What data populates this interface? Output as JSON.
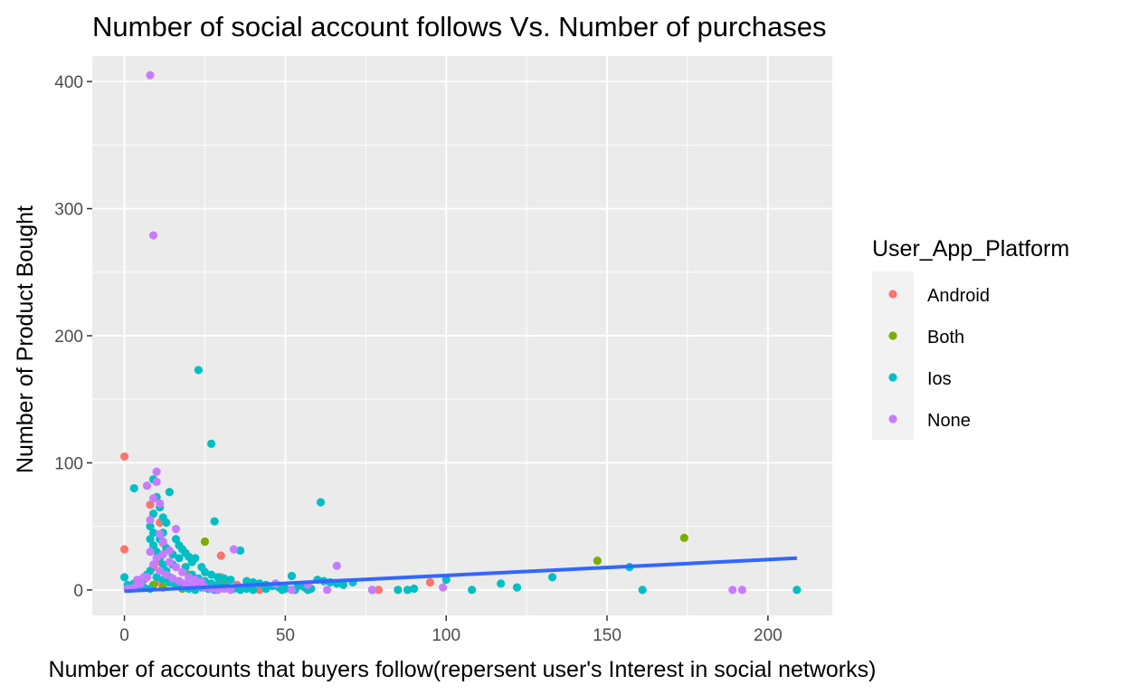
{
  "chart_data": {
    "type": "scatter",
    "title": "Number of social account follows Vs. Number of purchases",
    "xlabel": "Number of accounts that buyers follow(repersent user's Interest in social networks)",
    "ylabel": "Number of Product Bought",
    "xlim": [
      -10,
      220
    ],
    "ylim": [
      -20,
      420
    ],
    "x_ticks": [
      0,
      50,
      100,
      150,
      200
    ],
    "y_ticks": [
      0,
      100,
      200,
      300,
      400
    ],
    "grid": true,
    "legend": {
      "title": "User_App_Platform",
      "placement": "right",
      "entries": [
        "Android",
        "Both",
        "Ios",
        "None"
      ]
    },
    "series": [
      {
        "name": "Android",
        "color": "#F8766D",
        "points": [
          [
            0,
            105
          ],
          [
            0,
            32
          ],
          [
            8,
            67
          ],
          [
            11,
            53
          ],
          [
            12,
            37
          ],
          [
            10,
            22
          ],
          [
            13,
            12
          ],
          [
            15,
            8
          ],
          [
            16,
            3
          ],
          [
            30,
            27
          ],
          [
            30,
            10
          ],
          [
            35,
            4
          ],
          [
            37,
            2
          ],
          [
            42,
            0
          ],
          [
            18,
            5
          ],
          [
            20,
            2
          ],
          [
            9,
            18
          ],
          [
            11,
            6
          ],
          [
            79,
            0
          ],
          [
            95,
            6
          ],
          [
            4,
            2
          ],
          [
            6,
            8
          ],
          [
            26,
            3
          ]
        ]
      },
      {
        "name": "Both",
        "color": "#7CAE00",
        "points": [
          [
            25,
            38
          ],
          [
            20,
            12
          ],
          [
            15,
            6
          ],
          [
            9,
            4
          ],
          [
            12,
            2
          ],
          [
            147,
            23
          ],
          [
            174,
            41
          ],
          [
            31,
            6
          ],
          [
            18,
            1
          ]
        ]
      },
      {
        "name": "Ios",
        "color": "#00BFC4",
        "points": [
          [
            0,
            10
          ],
          [
            3,
            80
          ],
          [
            9,
            87
          ],
          [
            10,
            73
          ],
          [
            11,
            65
          ],
          [
            12,
            57
          ],
          [
            13,
            53
          ],
          [
            14,
            77
          ],
          [
            23,
            173
          ],
          [
            27,
            115
          ],
          [
            28,
            54
          ],
          [
            61,
            69
          ],
          [
            9,
            60
          ],
          [
            8,
            50
          ],
          [
            9,
            45
          ],
          [
            8,
            40
          ],
          [
            9,
            35
          ],
          [
            10,
            30
          ],
          [
            11,
            25
          ],
          [
            12,
            20
          ],
          [
            13,
            15
          ],
          [
            14,
            10
          ],
          [
            15,
            28
          ],
          [
            16,
            40
          ],
          [
            17,
            35
          ],
          [
            18,
            32
          ],
          [
            19,
            29
          ],
          [
            20,
            26
          ],
          [
            21,
            22
          ],
          [
            22,
            25
          ],
          [
            24,
            18
          ],
          [
            25,
            14
          ],
          [
            27,
            12
          ],
          [
            29,
            10
          ],
          [
            31,
            9
          ],
          [
            33,
            8
          ],
          [
            36,
            31
          ],
          [
            38,
            7
          ],
          [
            40,
            6
          ],
          [
            42,
            5
          ],
          [
            44,
            4
          ],
          [
            46,
            3
          ],
          [
            48,
            2
          ],
          [
            50,
            1
          ],
          [
            52,
            11
          ],
          [
            54,
            3
          ],
          [
            56,
            2
          ],
          [
            58,
            1
          ],
          [
            60,
            8
          ],
          [
            62,
            7
          ],
          [
            64,
            6
          ],
          [
            66,
            5
          ],
          [
            68,
            4
          ],
          [
            71,
            6
          ],
          [
            77,
            0
          ],
          [
            85,
            0
          ],
          [
            88,
            0
          ],
          [
            90,
            1
          ],
          [
            100,
            8
          ],
          [
            108,
            0
          ],
          [
            117,
            5
          ],
          [
            122,
            2
          ],
          [
            133,
            10
          ],
          [
            157,
            18
          ],
          [
            161,
            0
          ],
          [
            209,
            0
          ],
          [
            7,
            12
          ],
          [
            8,
            15
          ],
          [
            10,
            10
          ],
          [
            12,
            8
          ],
          [
            14,
            6
          ],
          [
            16,
            4
          ],
          [
            18,
            2
          ],
          [
            20,
            1
          ],
          [
            22,
            0
          ],
          [
            24,
            2
          ],
          [
            26,
            1
          ],
          [
            28,
            0
          ],
          [
            30,
            3
          ],
          [
            32,
            2
          ],
          [
            34,
            1
          ],
          [
            36,
            0
          ],
          [
            38,
            1
          ],
          [
            40,
            0
          ],
          [
            44,
            1
          ],
          [
            49,
            0
          ],
          [
            53,
            0
          ],
          [
            57,
            0
          ],
          [
            5,
            3
          ],
          [
            4,
            7
          ],
          [
            2,
            1
          ],
          [
            1,
            4
          ],
          [
            3,
            5
          ],
          [
            6,
            9
          ],
          [
            11,
            40
          ],
          [
            12,
            45
          ],
          [
            13,
            33
          ],
          [
            15,
            20
          ],
          [
            17,
            25
          ],
          [
            19,
            18
          ],
          [
            21,
            12
          ],
          [
            23,
            9
          ],
          [
            25,
            7
          ],
          [
            27,
            5
          ],
          [
            29,
            4
          ],
          [
            6,
            2
          ],
          [
            8,
            1
          ]
        ]
      },
      {
        "name": "None",
        "color": "#C77CFF",
        "points": [
          [
            8,
            405
          ],
          [
            9,
            279
          ],
          [
            10,
            93
          ],
          [
            7,
            82
          ],
          [
            10,
            85
          ],
          [
            9,
            72
          ],
          [
            11,
            68
          ],
          [
            8,
            55
          ],
          [
            11,
            44
          ],
          [
            12,
            38
          ],
          [
            14,
            31
          ],
          [
            16,
            48
          ],
          [
            34,
            32
          ],
          [
            66,
            19
          ],
          [
            10,
            25
          ],
          [
            9,
            20
          ],
          [
            11,
            15
          ],
          [
            13,
            12
          ],
          [
            15,
            9
          ],
          [
            17,
            7
          ],
          [
            19,
            5
          ],
          [
            21,
            4
          ],
          [
            23,
            3
          ],
          [
            25,
            2
          ],
          [
            27,
            1
          ],
          [
            29,
            0
          ],
          [
            31,
            1
          ],
          [
            33,
            0
          ],
          [
            5,
            5
          ],
          [
            3,
            2
          ],
          [
            1,
            1
          ],
          [
            6,
            10
          ],
          [
            4,
            8
          ],
          [
            99,
            2
          ],
          [
            77,
            0
          ],
          [
            189,
            0
          ],
          [
            192,
            0
          ],
          [
            47,
            5
          ],
          [
            52,
            0
          ],
          [
            57,
            4
          ],
          [
            63,
            0
          ],
          [
            12,
            28
          ],
          [
            14,
            22
          ],
          [
            16,
            18
          ],
          [
            18,
            14
          ],
          [
            20,
            10
          ],
          [
            22,
            8
          ],
          [
            24,
            6
          ],
          [
            8,
            30
          ],
          [
            7,
            10
          ]
        ]
      }
    ],
    "trend_line": {
      "color": "#3366FF",
      "x": [
        0,
        209
      ],
      "y": [
        -1,
        25
      ]
    }
  }
}
